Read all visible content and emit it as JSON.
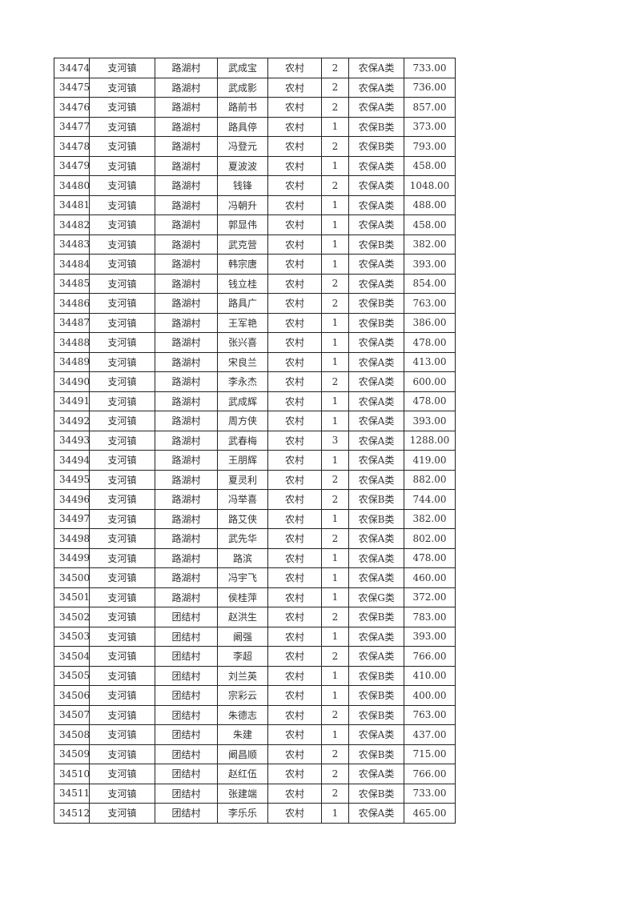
{
  "rows": [
    [
      "34474",
      "支河镇",
      "路湖村",
      "武成宝",
      "农村",
      "2",
      "农保A类",
      "733.00"
    ],
    [
      "34475",
      "支河镇",
      "路湖村",
      "武成影",
      "农村",
      "2",
      "农保A类",
      "736.00"
    ],
    [
      "34476",
      "支河镇",
      "路湖村",
      "路前书",
      "农村",
      "2",
      "农保A类",
      "857.00"
    ],
    [
      "34477",
      "支河镇",
      "路湖村",
      "路具停",
      "农村",
      "1",
      "农保B类",
      "373.00"
    ],
    [
      "34478",
      "支河镇",
      "路湖村",
      "冯登元",
      "农村",
      "2",
      "农保B类",
      "793.00"
    ],
    [
      "34479",
      "支河镇",
      "路湖村",
      "夏波波",
      "农村",
      "1",
      "农保A类",
      "458.00"
    ],
    [
      "34480",
      "支河镇",
      "路湖村",
      "钱锋",
      "农村",
      "2",
      "农保A类",
      "1048.00"
    ],
    [
      "34481",
      "支河镇",
      "路湖村",
      "冯朝升",
      "农村",
      "1",
      "农保A类",
      "488.00"
    ],
    [
      "34482",
      "支河镇",
      "路湖村",
      "郭显伟",
      "农村",
      "1",
      "农保A类",
      "458.00"
    ],
    [
      "34483",
      "支河镇",
      "路湖村",
      "武克营",
      "农村",
      "1",
      "农保B类",
      "382.00"
    ],
    [
      "34484",
      "支河镇",
      "路湖村",
      "韩宗唐",
      "农村",
      "1",
      "农保A类",
      "393.00"
    ],
    [
      "34485",
      "支河镇",
      "路湖村",
      "钱立桂",
      "农村",
      "2",
      "农保A类",
      "854.00"
    ],
    [
      "34486",
      "支河镇",
      "路湖村",
      "路具广",
      "农村",
      "2",
      "农保B类",
      "763.00"
    ],
    [
      "34487",
      "支河镇",
      "路湖村",
      "王军艳",
      "农村",
      "1",
      "农保B类",
      "386.00"
    ],
    [
      "34488",
      "支河镇",
      "路湖村",
      "张兴喜",
      "农村",
      "1",
      "农保A类",
      "478.00"
    ],
    [
      "34489",
      "支河镇",
      "路湖村",
      "宋良兰",
      "农村",
      "1",
      "农保A类",
      "413.00"
    ],
    [
      "34490",
      "支河镇",
      "路湖村",
      "李永杰",
      "农村",
      "2",
      "农保A类",
      "600.00"
    ],
    [
      "34491",
      "支河镇",
      "路湖村",
      "武成辉",
      "农村",
      "1",
      "农保A类",
      "478.00"
    ],
    [
      "34492",
      "支河镇",
      "路湖村",
      "周方侠",
      "农村",
      "1",
      "农保A类",
      "393.00"
    ],
    [
      "34493",
      "支河镇",
      "路湖村",
      "武春梅",
      "农村",
      "3",
      "农保A类",
      "1288.00"
    ],
    [
      "34494",
      "支河镇",
      "路湖村",
      "王朋辉",
      "农村",
      "1",
      "农保A类",
      "419.00"
    ],
    [
      "34495",
      "支河镇",
      "路湖村",
      "夏灵利",
      "农村",
      "2",
      "农保A类",
      "882.00"
    ],
    [
      "34496",
      "支河镇",
      "路湖村",
      "冯举喜",
      "农村",
      "2",
      "农保B类",
      "744.00"
    ],
    [
      "34497",
      "支河镇",
      "路湖村",
      "路艾侠",
      "农村",
      "1",
      "农保B类",
      "382.00"
    ],
    [
      "34498",
      "支河镇",
      "路湖村",
      "武先华",
      "农村",
      "2",
      "农保A类",
      "802.00"
    ],
    [
      "34499",
      "支河镇",
      "路湖村",
      "路滨",
      "农村",
      "1",
      "农保A类",
      "478.00"
    ],
    [
      "34500",
      "支河镇",
      "路湖村",
      "冯宇飞",
      "农村",
      "1",
      "农保A类",
      "460.00"
    ],
    [
      "34501",
      "支河镇",
      "路湖村",
      "侯桂萍",
      "农村",
      "1",
      "农保G类",
      "372.00"
    ],
    [
      "34502",
      "支河镇",
      "团结村",
      "赵洪生",
      "农村",
      "2",
      "农保B类",
      "783.00"
    ],
    [
      "34503",
      "支河镇",
      "团结村",
      "阚强",
      "农村",
      "1",
      "农保A类",
      "393.00"
    ],
    [
      "34504",
      "支河镇",
      "团结村",
      "李超",
      "农村",
      "2",
      "农保A类",
      "766.00"
    ],
    [
      "34505",
      "支河镇",
      "团结村",
      "刘兰英",
      "农村",
      "1",
      "农保B类",
      "410.00"
    ],
    [
      "34506",
      "支河镇",
      "团结村",
      "宗彩云",
      "农村",
      "1",
      "农保B类",
      "400.00"
    ],
    [
      "34507",
      "支河镇",
      "团结村",
      "朱德志",
      "农村",
      "2",
      "农保B类",
      "763.00"
    ],
    [
      "34508",
      "支河镇",
      "团结村",
      "朱建",
      "农村",
      "1",
      "农保A类",
      "437.00"
    ],
    [
      "34509",
      "支河镇",
      "团结村",
      "阚昌顺",
      "农村",
      "2",
      "农保B类",
      "715.00"
    ],
    [
      "34510",
      "支河镇",
      "团结村",
      "赵红伍",
      "农村",
      "2",
      "农保A类",
      "766.00"
    ],
    [
      "34511",
      "支河镇",
      "团结村",
      "张建端",
      "农村",
      "2",
      "农保B类",
      "733.00"
    ],
    [
      "34512",
      "支河镇",
      "团结村",
      "李乐乐",
      "农村",
      "1",
      "农保A类",
      "465.00"
    ]
  ]
}
